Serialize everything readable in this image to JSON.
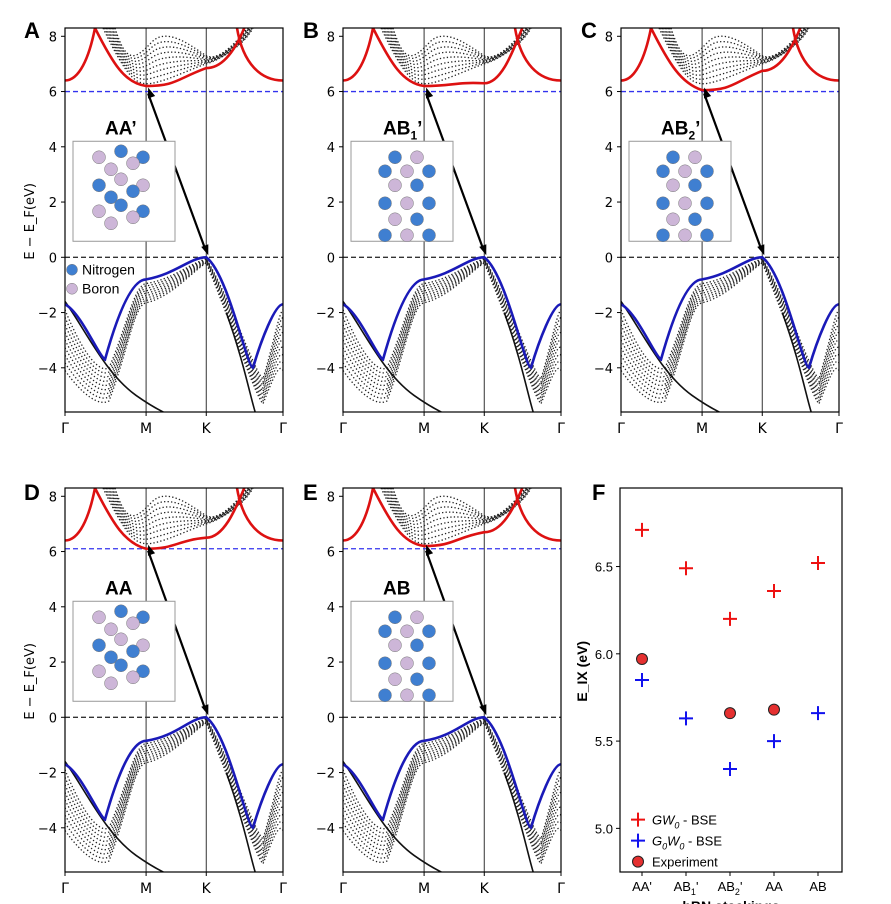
{
  "colors": {
    "conduction": "#dd1111",
    "valence": "#1a1ab8",
    "cbm_line": "#3333ee",
    "vbm_line": "#333333",
    "nitrogen": "#3f7fd1",
    "boron": "#cdb6d8",
    "gw": "#ee1111",
    "g0w0": "#1111ee",
    "experiment": "#e53030"
  },
  "chart_data": [
    {
      "type": "line",
      "panel": "A",
      "stacking_label": "AA’",
      "stacking_sub": "",
      "stacking_suffix": "",
      "ylabel": "E − E_F(eV)",
      "ylim": [
        -5.6,
        8.3
      ],
      "yticks": [
        "8",
        "6",
        "4",
        "2",
        "0",
        "−2",
        "−4"
      ],
      "ytick_values": [
        8,
        6,
        4,
        2,
        0,
        -2,
        -4
      ],
      "kpoints": [
        "Γ",
        "M",
        "K",
        "Γ"
      ],
      "cbm_energy": 6.0,
      "vbm_energy": 0.0,
      "legend": [
        {
          "label": "Nitrogen",
          "icon": "nitrogen-atom"
        },
        {
          "label": "Boron",
          "icon": "boron-atom"
        }
      ],
      "series": [
        {
          "name": "conduction band edge",
          "x": [
            0,
            0.5,
            1,
            1.5,
            2,
            2.5,
            2.85,
            3
          ],
          "y": [
            8.3,
            6.85,
            6.2,
            6.45,
            6.85,
            7.9,
            7.0,
            6.4
          ]
        },
        {
          "name": "valence band edge",
          "x": [
            0,
            0.5,
            1,
            1.5,
            2,
            2.5,
            2.85,
            3
          ],
          "y": [
            -1.7,
            -3.7,
            -0.8,
            -0.5,
            0.0,
            -2.2,
            -4.0,
            -1.7
          ]
        }
      ]
    },
    {
      "type": "line",
      "panel": "B",
      "stacking_label": "AB",
      "stacking_sub": "1",
      "stacking_suffix": "’",
      "ylabel": "",
      "ylim": [
        -5.6,
        8.3
      ],
      "yticks": [
        "8",
        "6",
        "4",
        "2",
        "0",
        "−2",
        "−4"
      ],
      "ytick_values": [
        8,
        6,
        4,
        2,
        0,
        -2,
        -4
      ],
      "kpoints": [
        "Γ",
        "M",
        "K",
        "Γ"
      ],
      "cbm_energy": 6.0,
      "vbm_energy": 0.0,
      "legend": [],
      "series": [
        {
          "name": "conduction band edge",
          "x": [
            0,
            0.5,
            1,
            1.5,
            2,
            2.5,
            2.85,
            3
          ],
          "y": [
            8.3,
            6.85,
            6.2,
            6.35,
            6.3,
            7.9,
            7.0,
            6.4
          ]
        },
        {
          "name": "valence band edge",
          "x": [
            0,
            0.5,
            1,
            1.5,
            2,
            2.5,
            2.85,
            3
          ],
          "y": [
            -1.7,
            -3.7,
            -0.8,
            -0.5,
            0.0,
            -2.2,
            -4.0,
            -1.7
          ]
        }
      ]
    },
    {
      "type": "line",
      "panel": "C",
      "stacking_label": "AB",
      "stacking_sub": "2",
      "stacking_suffix": "’",
      "ylabel": "",
      "ylim": [
        -5.6,
        8.3
      ],
      "yticks": [
        "8",
        "6",
        "4",
        "2",
        "0",
        "−2",
        "−4"
      ],
      "ytick_values": [
        8,
        6,
        4,
        2,
        0,
        -2,
        -4
      ],
      "kpoints": [
        "Γ",
        "M",
        "K",
        "Γ"
      ],
      "cbm_energy": 6.0,
      "vbm_energy": 0.0,
      "legend": [],
      "series": [
        {
          "name": "conduction band edge",
          "x": [
            0,
            0.5,
            1,
            1.5,
            2,
            2.5,
            2.85,
            3
          ],
          "y": [
            8.3,
            6.85,
            6.05,
            6.3,
            6.75,
            7.9,
            7.0,
            6.4
          ]
        },
        {
          "name": "valence band edge",
          "x": [
            0,
            0.5,
            1,
            1.5,
            2,
            2.5,
            2.85,
            3
          ],
          "y": [
            -1.7,
            -3.7,
            -0.8,
            -0.5,
            0.0,
            -2.2,
            -4.0,
            -1.7
          ]
        }
      ]
    },
    {
      "type": "line",
      "panel": "D",
      "stacking_label": "AA",
      "stacking_sub": "",
      "stacking_suffix": "",
      "ylabel": "E − E_F(eV)",
      "ylim": [
        -5.6,
        8.3
      ],
      "yticks": [
        "8",
        "6",
        "4",
        "2",
        "0",
        "−2",
        "−4"
      ],
      "ytick_values": [
        8,
        6,
        4,
        2,
        0,
        -2,
        -4
      ],
      "kpoints": [
        "Γ",
        "M",
        "K",
        "Γ"
      ],
      "cbm_energy": 6.1,
      "vbm_energy": 0.0,
      "legend": [],
      "series": [
        {
          "name": "conduction band edge",
          "x": [
            0,
            0.5,
            1,
            1.5,
            2,
            2.5,
            2.85,
            3
          ],
          "y": [
            8.3,
            6.85,
            6.1,
            6.4,
            6.5,
            7.9,
            7.0,
            6.4
          ]
        },
        {
          "name": "valence band edge",
          "x": [
            0,
            0.5,
            1,
            1.5,
            2,
            2.5,
            2.85,
            3
          ],
          "y": [
            -1.7,
            -3.7,
            -0.85,
            -0.6,
            0.0,
            -2.2,
            -4.0,
            -1.7
          ]
        }
      ]
    },
    {
      "type": "line",
      "panel": "E",
      "stacking_label": "AB",
      "stacking_sub": "",
      "stacking_suffix": "",
      "ylabel": "",
      "ylim": [
        -5.6,
        8.3
      ],
      "yticks": [
        "8",
        "6",
        "4",
        "2",
        "0",
        "−2",
        "−4"
      ],
      "ytick_values": [
        8,
        6,
        4,
        2,
        0,
        -2,
        -4
      ],
      "kpoints": [
        "Γ",
        "M",
        "K",
        "Γ"
      ],
      "cbm_energy": 6.1,
      "vbm_energy": 0.0,
      "legend": [],
      "series": [
        {
          "name": "conduction band edge",
          "x": [
            0,
            0.5,
            1,
            1.5,
            2,
            2.5,
            2.85,
            3
          ],
          "y": [
            8.3,
            6.85,
            6.2,
            6.5,
            6.7,
            7.9,
            7.0,
            6.4
          ]
        },
        {
          "name": "valence band edge",
          "x": [
            0,
            0.5,
            1,
            1.5,
            2,
            2.5,
            2.85,
            3
          ],
          "y": [
            -1.7,
            -3.7,
            -0.85,
            -0.6,
            0.0,
            -2.2,
            -4.0,
            -1.7
          ]
        }
      ]
    },
    {
      "type": "scatter",
      "panel": "F",
      "xlabel": "hBN stackings",
      "ylabel": "E_IX (eV)",
      "ylim": [
        4.75,
        6.95
      ],
      "yticks": [
        "6.5",
        "6.0",
        "5.5",
        "5.0"
      ],
      "ytick_values": [
        6.5,
        6.0,
        5.5,
        5.0
      ],
      "categories": [
        {
          "base": "AB",
          "sub": "",
          "suffix": "",
          "full": "AA'"
        },
        {
          "base": "AB",
          "sub": "1",
          "suffix": "'",
          "full": "AB1'"
        },
        {
          "base": "AB",
          "sub": "2",
          "suffix": "'",
          "full": "AB2'"
        },
        {
          "base": "AA",
          "sub": "",
          "suffix": "",
          "full": "AA"
        },
        {
          "base": "AB",
          "sub": "",
          "suffix": "",
          "full": "AB"
        }
      ],
      "category_labels": [
        "AA'",
        "AB",
        "AB",
        "AA",
        "AB"
      ],
      "category_subs": [
        "",
        "1",
        "2",
        "",
        ""
      ],
      "category_suffix": [
        "",
        "'",
        "'",
        "",
        ""
      ],
      "series": [
        {
          "name": "GW0 - BSE",
          "marker": "plus",
          "values": [
            6.71,
            6.49,
            6.2,
            6.36,
            6.52
          ]
        },
        {
          "name": "G0W0 - BSE",
          "marker": "plus",
          "values": [
            5.85,
            5.63,
            5.34,
            5.5,
            5.66
          ]
        },
        {
          "name": "Experiment",
          "marker": "circle",
          "values": [
            5.97,
            null,
            5.66,
            5.68,
            null
          ]
        }
      ],
      "legend": [
        {
          "main1": "GW",
          "sub1": "0",
          "main2": "",
          "sub2": "",
          "rest": " - BSE"
        },
        {
          "main1": "G",
          "sub1": "0",
          "main2": "W",
          "sub2": "0",
          "rest": " - BSE"
        },
        {
          "main1": "Experiment",
          "sub1": "",
          "main2": "",
          "sub2": "",
          "rest": ""
        }
      ]
    }
  ]
}
